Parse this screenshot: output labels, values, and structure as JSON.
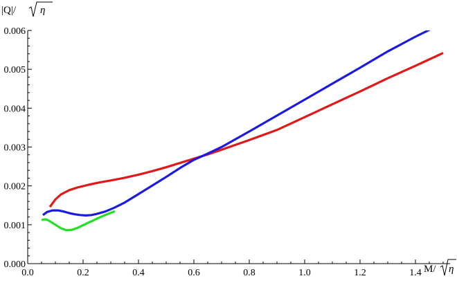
{
  "chart_data": {
    "type": "line",
    "xlabel_prefix": "M/",
    "ylabel_prefix": "|Q|/",
    "radicand": "η",
    "xlim": [
      0.0,
      1.5
    ],
    "ylim": [
      0.0,
      0.006
    ],
    "x_ticks": [
      "0.0",
      "0.2",
      "0.4",
      "0.6",
      "0.8",
      "1.0",
      "1.2",
      "1.4"
    ],
    "y_ticks": [
      "0.000",
      "0.001",
      "0.002",
      "0.003",
      "0.004",
      "0.005",
      "0.006"
    ],
    "grid": false,
    "legend": "none",
    "series": [
      {
        "color": "#e0181a",
        "points": [
          [
            0.08,
            0.00146
          ],
          [
            0.1,
            0.00165
          ],
          [
            0.12,
            0.00178
          ],
          [
            0.15,
            0.00189
          ],
          [
            0.18,
            0.00196
          ],
          [
            0.22,
            0.00203
          ],
          [
            0.26,
            0.00209
          ],
          [
            0.3,
            0.00214
          ],
          [
            0.35,
            0.00221
          ],
          [
            0.4,
            0.00229
          ],
          [
            0.45,
            0.00238
          ],
          [
            0.5,
            0.00248
          ],
          [
            0.55,
            0.00259
          ],
          [
            0.6,
            0.0027
          ],
          [
            0.65,
            0.00281
          ],
          [
            0.7,
            0.00293
          ],
          [
            0.8,
            0.00318
          ],
          [
            0.9,
            0.00344
          ],
          [
            1.0,
            0.00377
          ],
          [
            1.1,
            0.0041
          ],
          [
            1.2,
            0.00443
          ],
          [
            1.3,
            0.00477
          ],
          [
            1.4,
            0.00509
          ],
          [
            1.5,
            0.00542
          ]
        ]
      },
      {
        "color": "#1a1ae0",
        "points": [
          [
            0.055,
            0.00125
          ],
          [
            0.07,
            0.00133
          ],
          [
            0.09,
            0.00137
          ],
          [
            0.11,
            0.00137
          ],
          [
            0.13,
            0.00134
          ],
          [
            0.15,
            0.0013
          ],
          [
            0.17,
            0.00127
          ],
          [
            0.19,
            0.00125
          ],
          [
            0.21,
            0.00124
          ],
          [
            0.23,
            0.00125
          ],
          [
            0.25,
            0.00128
          ],
          [
            0.28,
            0.00134
          ],
          [
            0.31,
            0.00143
          ],
          [
            0.35,
            0.00157
          ],
          [
            0.4,
            0.00179
          ],
          [
            0.45,
            0.00201
          ],
          [
            0.5,
            0.00223
          ],
          [
            0.55,
            0.00246
          ],
          [
            0.6,
            0.00267
          ],
          [
            0.65,
            0.00283
          ],
          [
            0.7,
            0.003
          ],
          [
            0.8,
            0.0034
          ],
          [
            0.9,
            0.00381
          ],
          [
            1.0,
            0.00422
          ],
          [
            1.1,
            0.00463
          ],
          [
            1.2,
            0.00504
          ],
          [
            1.3,
            0.00546
          ],
          [
            1.4,
            0.00584
          ],
          [
            1.48,
            0.00612
          ]
        ]
      },
      {
        "color": "#22e022",
        "points": [
          [
            0.05,
            0.00112
          ],
          [
            0.06,
            0.00114
          ],
          [
            0.07,
            0.00113
          ],
          [
            0.08,
            0.00109
          ],
          [
            0.1,
            0.001
          ],
          [
            0.12,
            0.00091
          ],
          [
            0.14,
            0.00086
          ],
          [
            0.16,
            0.00087
          ],
          [
            0.18,
            0.00092
          ],
          [
            0.2,
            0.00099
          ],
          [
            0.23,
            0.00109
          ],
          [
            0.26,
            0.00119
          ],
          [
            0.29,
            0.00128
          ],
          [
            0.315,
            0.00135
          ]
        ]
      }
    ]
  }
}
